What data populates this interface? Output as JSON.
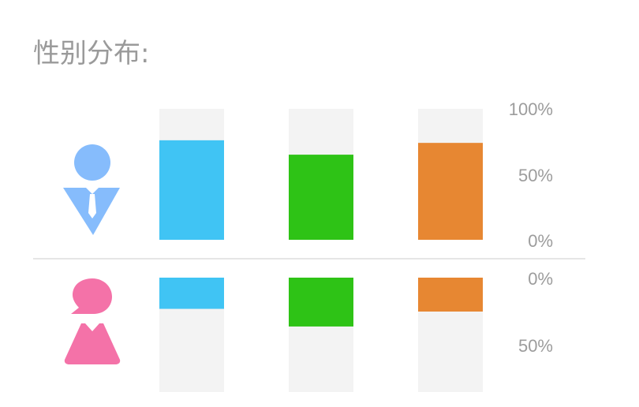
{
  "title": "性别分布:",
  "icons": {
    "male": "male-person-icon",
    "female": "female-person-icon"
  },
  "colors": {
    "male_icon": "#86bcfc",
    "female_icon": "#f472a8",
    "bar_track": "#f3f3f3",
    "divider": "#dedede",
    "series": [
      "#40c4f4",
      "#2ec316",
      "#e78732"
    ]
  },
  "chart_data": {
    "type": "bar",
    "title": "性别分布:",
    "categories": [
      "",
      "",
      ""
    ],
    "series": [
      {
        "group": "male",
        "values": [
          76,
          65,
          74
        ]
      },
      {
        "group": "female",
        "values": [
          23,
          36,
          25
        ]
      }
    ],
    "ylim": [
      0,
      100
    ],
    "male_ticks": [
      "100%",
      "50%",
      "0%"
    ],
    "female_ticks": [
      "0%",
      "50%"
    ],
    "grid": false,
    "legend": "none"
  }
}
